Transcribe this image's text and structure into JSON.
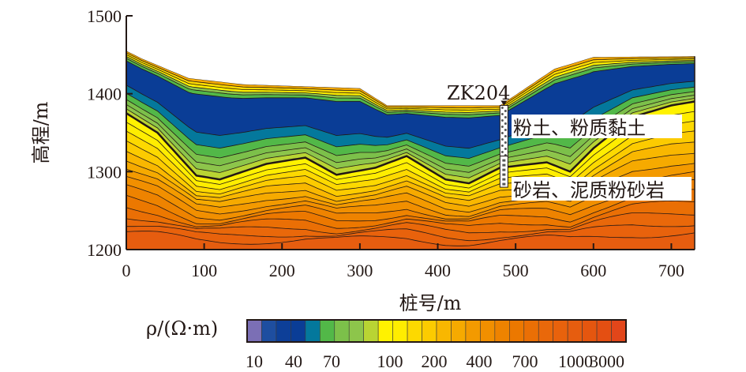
{
  "chart_data": {
    "type": "heatmap",
    "subtype": "resistivity contour section",
    "xlabel": "桩号/m",
    "ylabel": "高程/m",
    "xlim": [
      0,
      730
    ],
    "ylim": [
      1200,
      1500
    ],
    "xticks": [
      "0",
      "100",
      "200",
      "300",
      "400",
      "500",
      "600",
      "700"
    ],
    "xtick_values": [
      0,
      100,
      200,
      300,
      400,
      500,
      600,
      700
    ],
    "yticks": [
      "1200",
      "1300",
      "1400",
      "1500"
    ],
    "ytick_values": [
      1200,
      1300,
      1400,
      1500
    ],
    "surface_profile": [
      [
        0,
        1455
      ],
      [
        20,
        1445
      ],
      [
        80,
        1420
      ],
      [
        150,
        1412
      ],
      [
        300,
        1407
      ],
      [
        335,
        1385
      ],
      [
        480,
        1385
      ],
      [
        550,
        1432
      ],
      [
        600,
        1447
      ],
      [
        730,
        1448
      ]
    ],
    "layer_boundary": [
      [
        0,
        1375
      ],
      [
        40,
        1350
      ],
      [
        90,
        1295
      ],
      [
        120,
        1290
      ],
      [
        180,
        1310
      ],
      [
        230,
        1318
      ],
      [
        270,
        1296
      ],
      [
        320,
        1305
      ],
      [
        360,
        1320
      ],
      [
        410,
        1290
      ],
      [
        440,
        1285
      ],
      [
        480,
        1305
      ],
      [
        540,
        1312
      ],
      [
        570,
        1300
      ],
      [
        600,
        1330
      ],
      [
        650,
        1370
      ],
      [
        700,
        1385
      ],
      [
        730,
        1390
      ]
    ],
    "borehole": {
      "name": "ZK204",
      "x": 485,
      "top": 1385,
      "bottom": 1280,
      "change": 1320
    },
    "annotations": [
      "粉土、粉质黏土",
      "砂岩、泥质粉砂岩"
    ],
    "colorbar": {
      "label": "ρ/(Ω·m)",
      "tick_labels": [
        "10",
        "40",
        "70",
        "100",
        "200",
        "400",
        "700",
        "1000",
        "3000"
      ],
      "colors": [
        "#7b6fb5",
        "#1e4ea0",
        "#0d3f98",
        "#0a3d96",
        "#04789c",
        "#52b848",
        "#7cc04a",
        "#8dc54b",
        "#b9d433",
        "#fff200",
        "#ffed00",
        "#fdd900",
        "#fccb00",
        "#f9b700",
        "#f6aa00",
        "#f39a00",
        "#f18f00",
        "#ee8300",
        "#ec7800",
        "#ea6f05",
        "#e9680a",
        "#e8620c",
        "#e65d0f",
        "#e5560f",
        "#e44f12",
        "#e2461a"
      ]
    }
  }
}
